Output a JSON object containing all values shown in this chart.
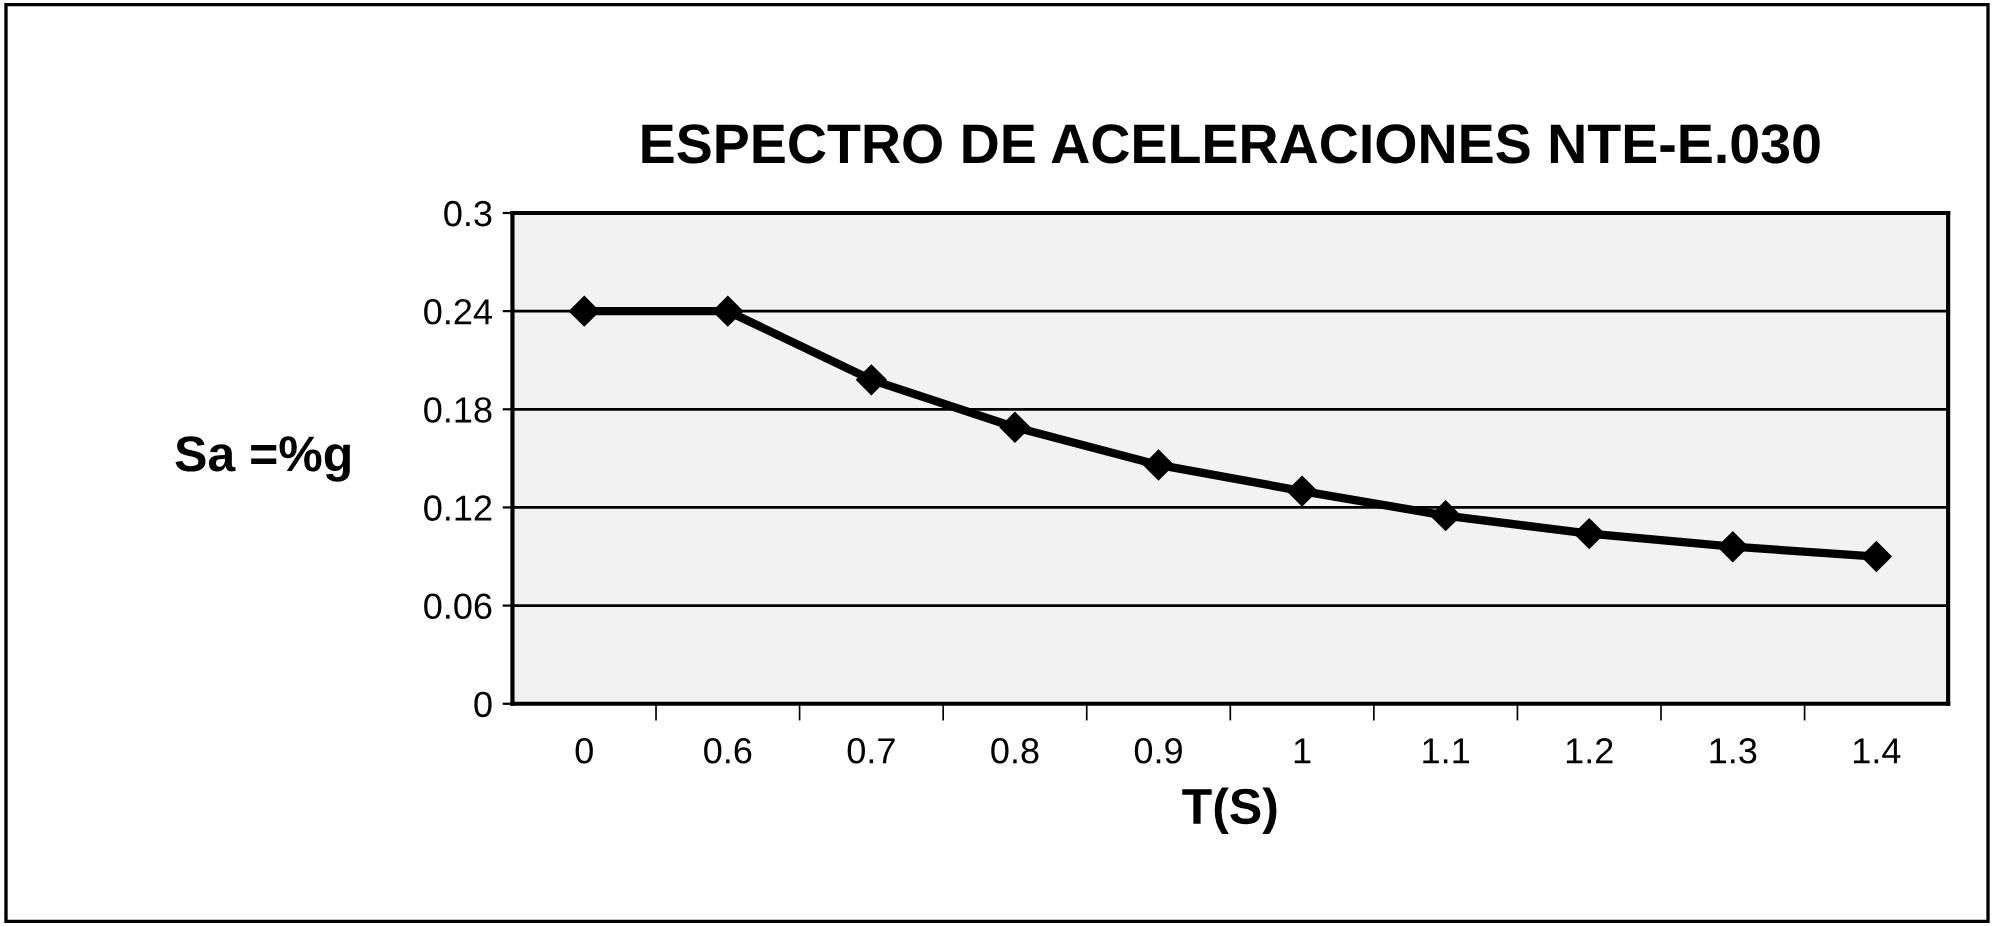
{
  "chart_data": {
    "type": "line",
    "title": "ESPECTRO DE ACELERACIONES NTE-E.030",
    "xlabel": "T(S)",
    "ylabel": "Sa =%g",
    "categories": [
      "0",
      "0.6",
      "0.7",
      "0.8",
      "0.9",
      "1",
      "1.1",
      "1.2",
      "1.3",
      "1.4"
    ],
    "series": [
      {
        "color": "#000000",
        "values": [
          0.24,
          0.24,
          0.198,
          0.169,
          0.146,
          0.13,
          0.115,
          0.104,
          0.096,
          0.09
        ]
      }
    ],
    "ylim": [
      0,
      0.3
    ],
    "yticks": [
      0,
      0.06,
      0.12,
      0.18,
      0.24,
      0.3
    ],
    "grid": "y",
    "marker": "diamond",
    "line_style": "solid"
  }
}
